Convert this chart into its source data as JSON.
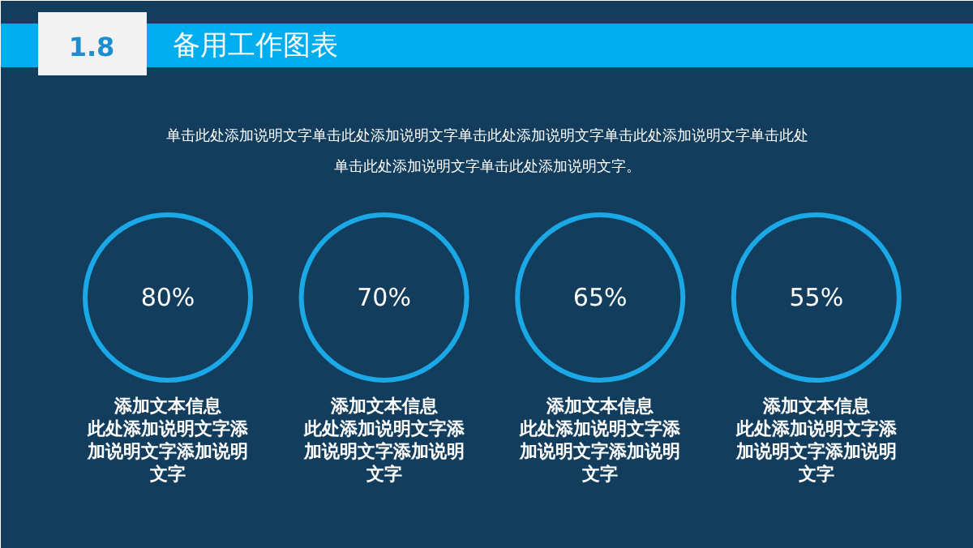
{
  "chart_data": {
    "type": "other",
    "title": "备用工作图表",
    "subtitle": "单击此处添加说明文字单击此处添加说明文字单击此处添加说明文字单击此处添加说明文字单击此处单击此处添加说明文字单击此处添加说明文字。",
    "annotations": [
      "1.8",
      "此处添加说明文字添加说明文字添加说明文字",
      "此处添加说明文字添加说明文字添加说明文字",
      "此处添加说明文字添加说明文字添加说明文字",
      "此处添加说明文字添加说明文字添加说明文字"
    ],
    "categories": [
      "添加文本信息",
      "添加文本信息",
      "添加文本信息",
      "添加文本信息"
    ],
    "values": [
      80,
      70,
      65,
      55
    ],
    "value_labels": [
      "80%",
      "70%",
      "65%",
      "55%"
    ],
    "color": "#1aa8e6"
  }
}
